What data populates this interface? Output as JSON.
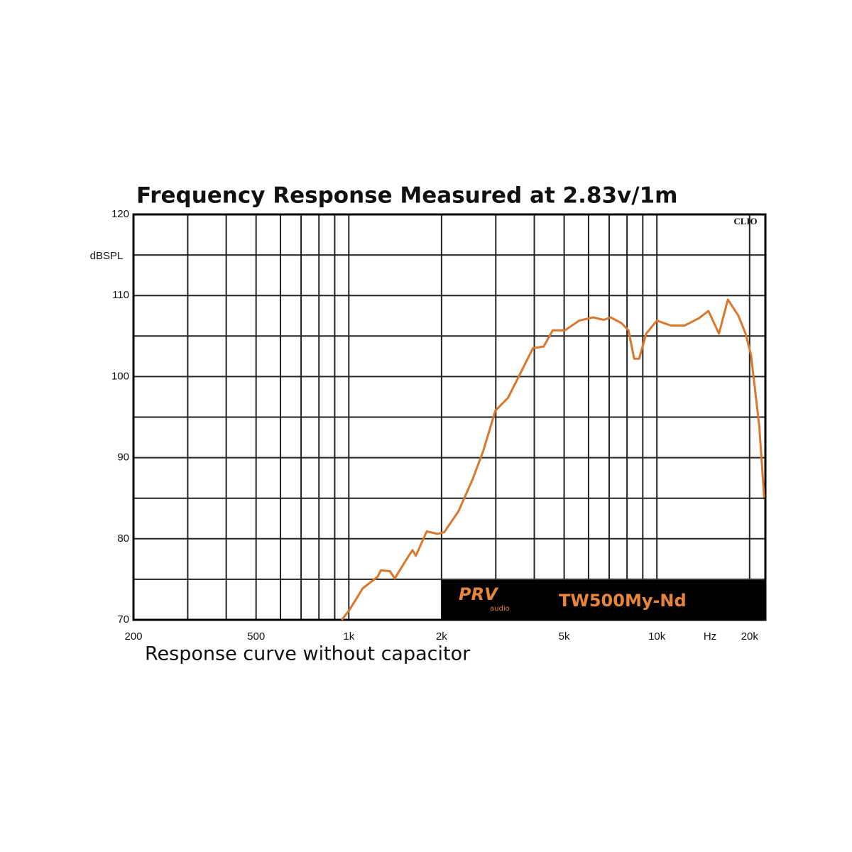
{
  "chart_data": {
    "type": "line",
    "title": "Frequency Response Measured at 2.83v/1m",
    "subtitle": "Response curve without capacitor",
    "ylabel": "dBSPL",
    "xlabel": "Hz",
    "badge": "CLIO",
    "logo": {
      "brand": "PRV",
      "sub": "audio",
      "model": "TW500My-Nd"
    },
    "xscale": "log",
    "xlim": [
      200,
      22500
    ],
    "ylim": [
      70,
      120
    ],
    "xticks": [
      200,
      500,
      {
        "value": 1000,
        "label": "1k"
      },
      {
        "value": 2000,
        "label": "2k"
      },
      {
        "value": 5000,
        "label": "5k"
      },
      {
        "value": 10000,
        "label": "10k"
      },
      {
        "value": 20000,
        "label": "20k"
      }
    ],
    "xgrid": [
      300,
      400,
      600,
      700,
      800,
      900,
      3000,
      4000,
      6000,
      7000,
      8000,
      9000
    ],
    "yticks": [
      70,
      80,
      90,
      100,
      110,
      120
    ],
    "ygrid": [
      75,
      85,
      95,
      105,
      115
    ],
    "grid": true,
    "x": [
      948,
      1000,
      1110,
      1240,
      1270,
      1360,
      1410,
      1530,
      1610,
      1650,
      1790,
      1940,
      2040,
      2270,
      2520,
      2730,
      2990,
      3290,
      3660,
      3960,
      4290,
      4590,
      5030,
      5590,
      6210,
      6720,
      7080,
      7670,
      8090,
      8440,
      8760,
      9230,
      10000,
      11100,
      12300,
      13700,
      14700,
      15900,
      17000,
      18400,
      19400,
      20200,
      21500,
      22300
    ],
    "series": [
      {
        "name": "TW500My-Nd",
        "color": "#d9772c",
        "values": [
          70,
          71.1,
          73.9,
          75.3,
          76.1,
          76,
          75.1,
          77.3,
          78.6,
          77.9,
          80.9,
          80.6,
          80.8,
          83.4,
          87.3,
          90.8,
          95.8,
          97.4,
          100.9,
          103.5,
          103.7,
          105.7,
          105.7,
          106.9,
          107.3,
          107,
          107.3,
          106.6,
          105.7,
          102.2,
          102.2,
          105.3,
          106.9,
          106.3,
          106.3,
          107.2,
          108.1,
          105.3,
          109.5,
          107.5,
          105.3,
          102.7,
          93.9,
          85.1
        ]
      }
    ]
  }
}
